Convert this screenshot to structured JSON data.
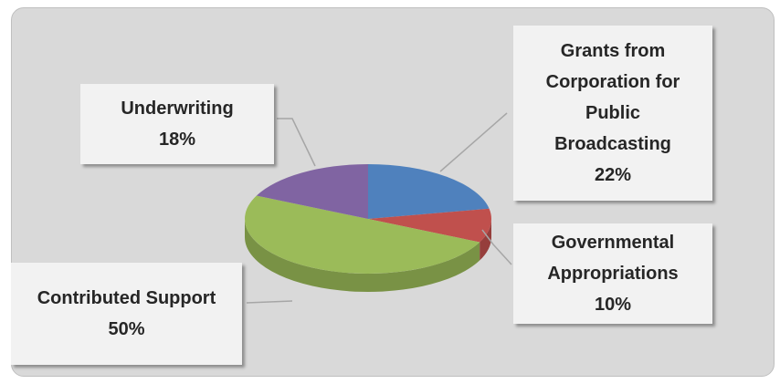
{
  "chart_data": {
    "type": "pie",
    "categories": [
      "Grants from Corporation for Public Broadcasting",
      "Governmental Appropriations",
      "Contributed Support",
      "Underwriting"
    ],
    "values": [
      22,
      10,
      50,
      18
    ],
    "value_labels": [
      "22%",
      "10%",
      "50%",
      "18%"
    ],
    "colors": [
      "#4f81bd",
      "#c0504d",
      "#9bbb59",
      "#8064a2"
    ]
  }
}
